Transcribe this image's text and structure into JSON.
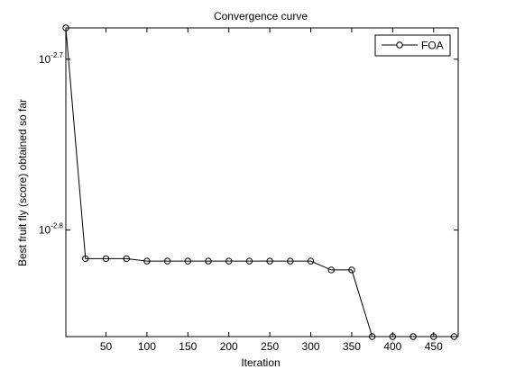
{
  "chart_data": {
    "type": "line",
    "title": "Convergence curve",
    "xlabel": "Iteration",
    "ylabel": "Best fruit fly (score) obtained so far",
    "x_ticks": [
      50,
      100,
      150,
      200,
      250,
      300,
      350,
      400,
      450
    ],
    "xlim": [
      1,
      480
    ],
    "y_scale": "log",
    "y_ticks": [
      {
        "base": "10",
        "exp": "-2.7",
        "value": 0.001995
      },
      {
        "base": "10",
        "exp": "-2.8",
        "value": 0.001585
      }
    ],
    "ylim": [
      0.001373,
      0.002081
    ],
    "grid": false,
    "legend": {
      "position": "top-right"
    },
    "series": [
      {
        "name": "FOA",
        "color": "#000000",
        "marker": "circle",
        "x": [
          1,
          25,
          50,
          75,
          100,
          125,
          150,
          175,
          200,
          225,
          250,
          275,
          300,
          325,
          350,
          375,
          400,
          425,
          450,
          475
        ],
        "y": [
          0.002081,
          0.001525,
          0.001525,
          0.001525,
          0.00152,
          0.00152,
          0.00152,
          0.00152,
          0.00152,
          0.00152,
          0.00152,
          0.00152,
          0.00152,
          0.001502,
          0.001502,
          0.001373,
          0.001373,
          0.001373,
          0.001373,
          0.001373
        ]
      }
    ]
  }
}
